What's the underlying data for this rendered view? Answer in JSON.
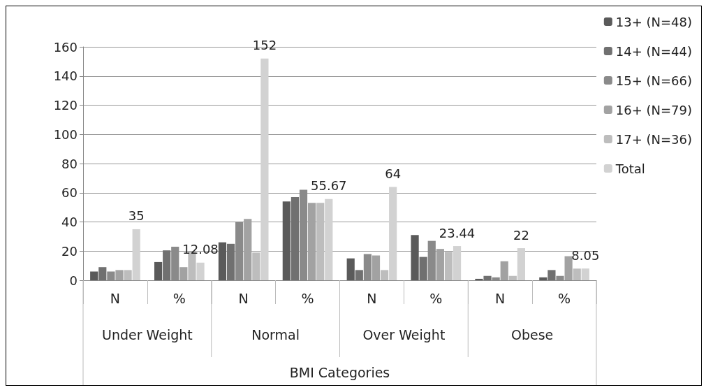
{
  "chart_data": {
    "type": "bar",
    "xlabel": "BMI Categories",
    "categories": [
      "N",
      "%",
      "N",
      "%",
      "N",
      "%",
      "N",
      "%"
    ],
    "annotations": [
      "Under Weight",
      "Normal",
      "Over Weight",
      "Obese"
    ],
    "series": [
      {
        "name": "13+ (N=48)",
        "color": "#5a5a5a",
        "values": [
          6,
          12.5,
          26,
          54,
          15,
          31,
          1,
          2
        ]
      },
      {
        "name": "14+ (N=44)",
        "color": "#707070",
        "values": [
          9,
          20.5,
          25,
          57,
          7,
          16,
          3,
          7
        ]
      },
      {
        "name": "15+ (N=66)",
        "color": "#8a8a8a",
        "values": [
          6,
          23,
          40,
          62,
          18,
          27,
          2,
          3
        ]
      },
      {
        "name": "16+ (N=79)",
        "color": "#a2a2a2",
        "values": [
          7,
          9,
          42,
          53,
          17,
          21.5,
          13,
          16.5
        ]
      },
      {
        "name": "17+ (N=36)",
        "color": "#bdbdbd",
        "values": [
          7,
          19.5,
          19,
          53,
          7,
          19.5,
          3,
          8
        ]
      },
      {
        "name": "Total",
        "color": "#d2d2d2",
        "values": [
          35,
          12.08,
          152,
          55.67,
          64,
          23.44,
          22,
          8.05
        ],
        "value_labels": [
          "35",
          "12.08",
          "152",
          "55.67",
          "64",
          "23.44",
          "22",
          "8.05"
        ]
      }
    ],
    "ylim": [
      0,
      160
    ],
    "yticks": [
      0,
      20,
      40,
      60,
      80,
      100,
      120,
      140,
      160
    ],
    "grid": "y",
    "legend": "top right"
  }
}
